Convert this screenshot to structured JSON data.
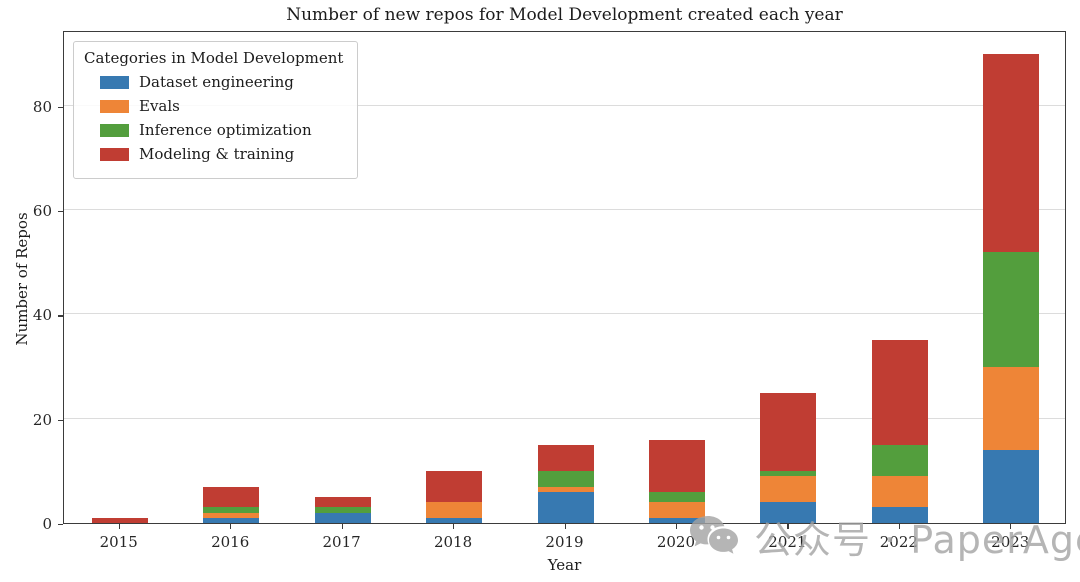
{
  "title": "Number of new repos for Model Development created each year",
  "xlabel": "Year",
  "ylabel": "Number of Repos",
  "legend": {
    "title": "Categories in Model Development"
  },
  "watermark": {
    "icon": "wechat-icon",
    "text": "公众号 · PaperAgent"
  },
  "chart_data": {
    "type": "bar",
    "stacked": true,
    "title": "Number of new repos for Model Development created each year",
    "xlabel": "Year",
    "ylabel": "Number of Repos",
    "categories": [
      "2015",
      "2016",
      "2017",
      "2018",
      "2019",
      "2020",
      "2021",
      "2022",
      "2023"
    ],
    "series": [
      {
        "name": "Dataset engineering",
        "color": "#3779b1",
        "values": [
          0,
          1,
          2,
          1,
          6,
          1,
          4,
          3,
          14
        ]
      },
      {
        "name": "Evals",
        "color": "#ee8537",
        "values": [
          0,
          1,
          0,
          3,
          1,
          3,
          5,
          6,
          16
        ]
      },
      {
        "name": "Inference optimization",
        "color": "#539e3d",
        "values": [
          0,
          1,
          1,
          0,
          3,
          2,
          1,
          6,
          22
        ]
      },
      {
        "name": "Modeling & training",
        "color": "#c03d33",
        "values": [
          1,
          4,
          2,
          6,
          5,
          10,
          15,
          20,
          38
        ]
      }
    ],
    "totals": [
      1,
      7,
      5,
      10,
      15,
      16,
      25,
      35,
      90
    ],
    "ylim": [
      0,
      94.5
    ],
    "yticks": [
      0,
      20,
      40,
      60,
      80
    ],
    "grid": "horizontal",
    "legend_title": "Categories in Model Development",
    "legend_position": "upper left"
  }
}
